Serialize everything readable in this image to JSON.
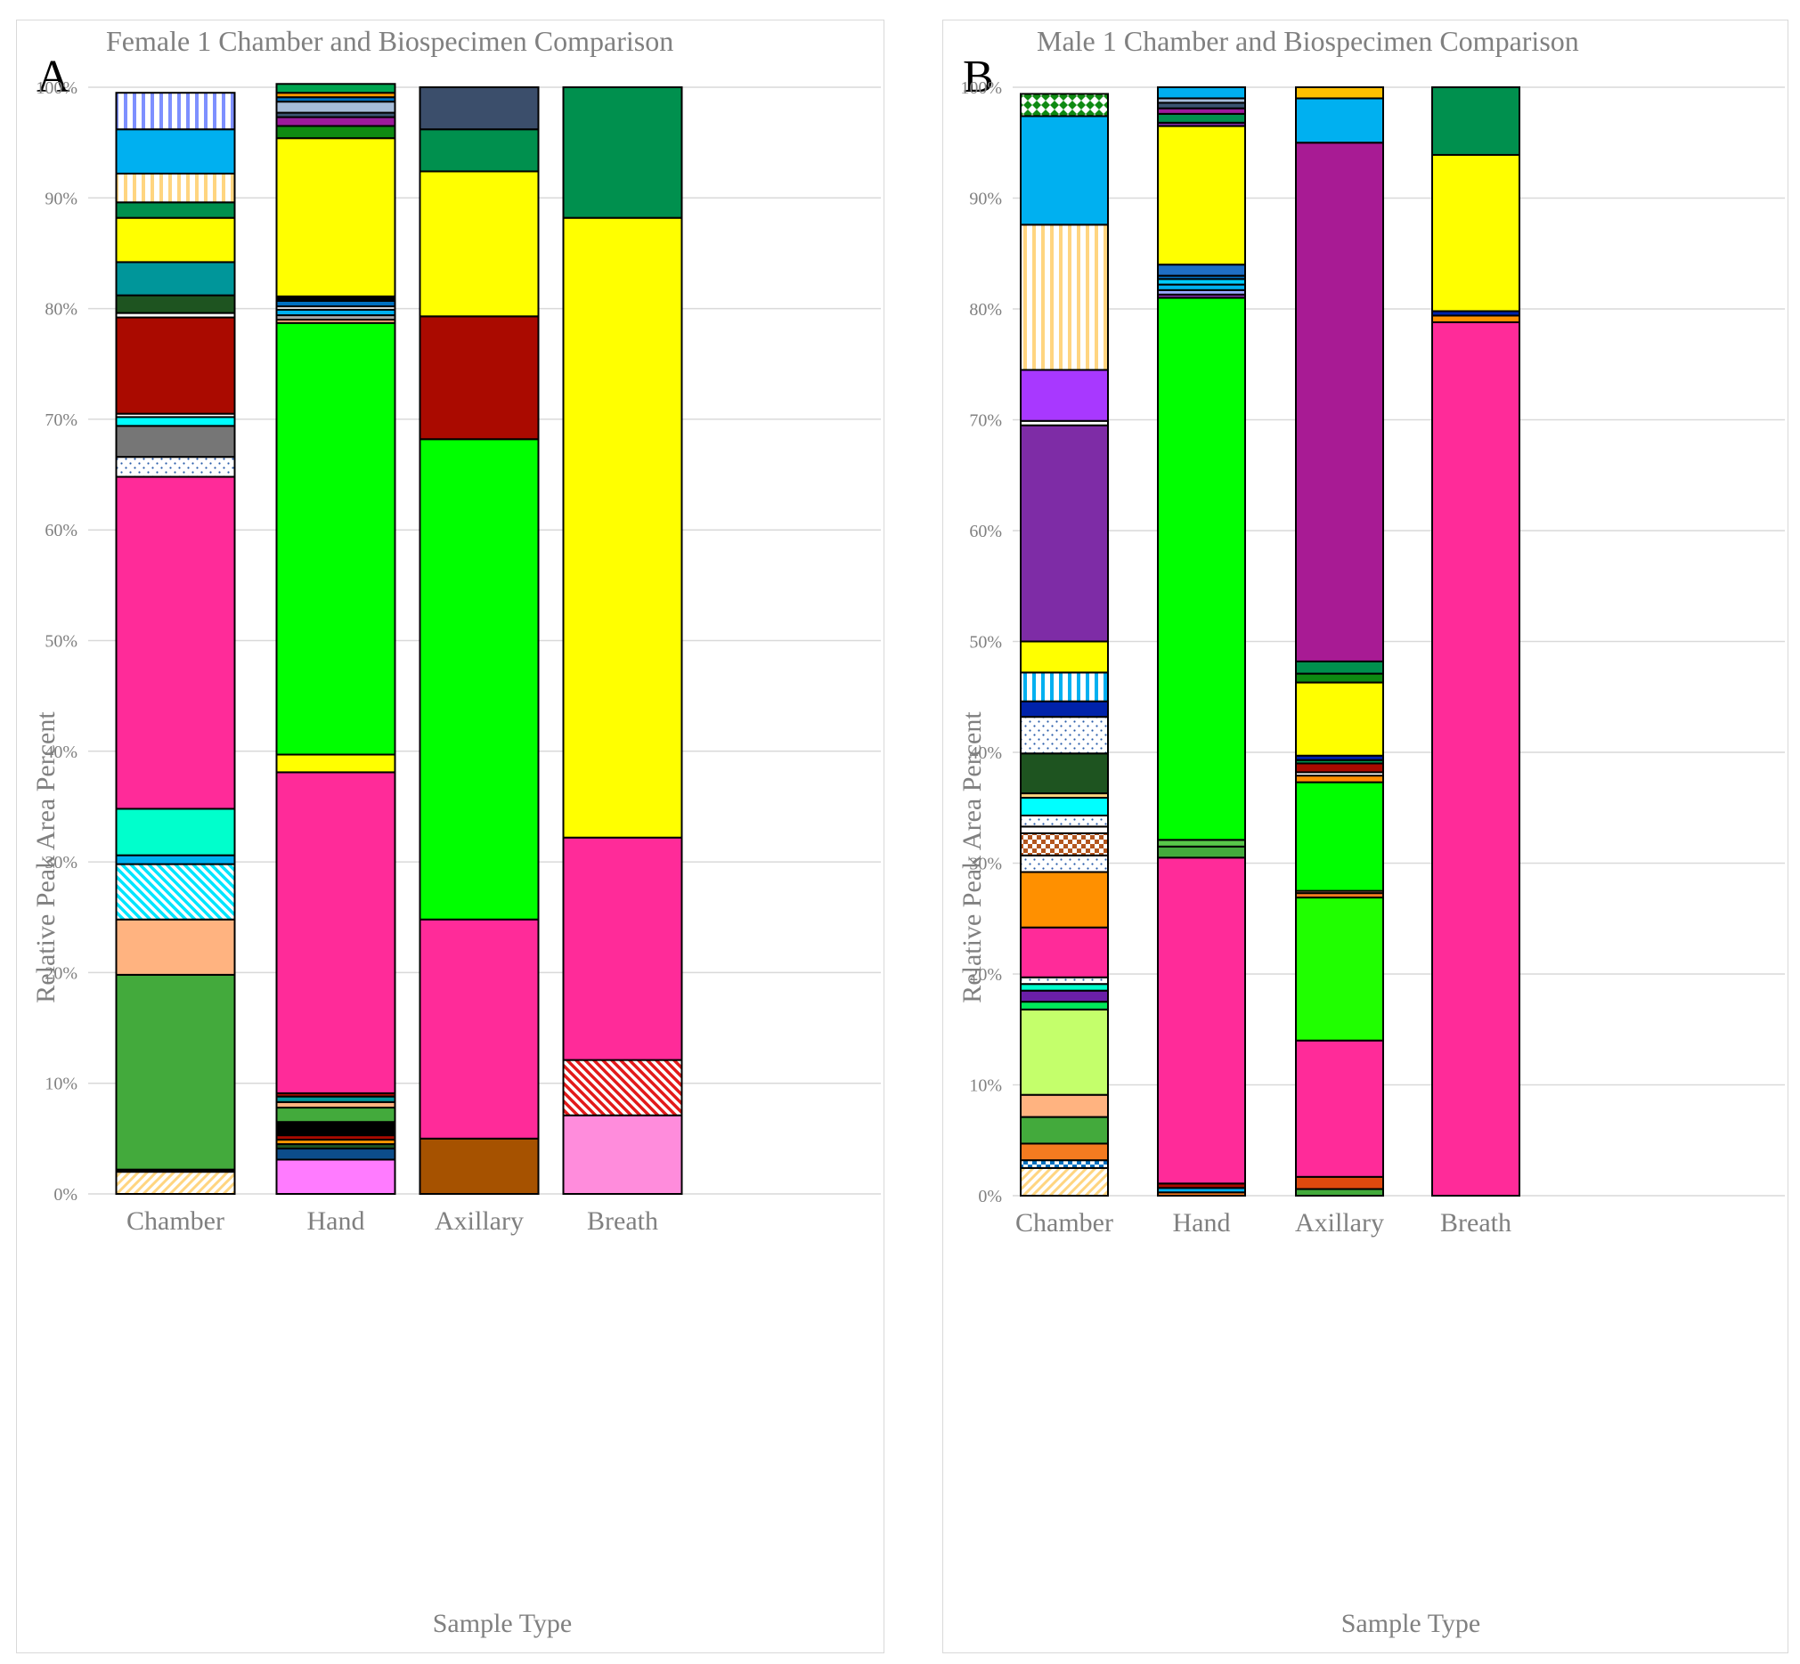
{
  "chart_data": [
    {
      "type": "bar",
      "stacked": true,
      "panel_letter": "A",
      "title": "Female 1 Chamber and Biospecimen Comparison",
      "xlabel": "Sample Type",
      "ylabel": "Relative Peak Area Percent",
      "ylim": [
        0,
        100
      ],
      "yticks": [
        "0%",
        "10%",
        "20%",
        "30%",
        "40%",
        "50%",
        "60%",
        "70%",
        "80%",
        "90%",
        "100%"
      ],
      "grid": true,
      "legend": "none",
      "categories": [
        "Chamber",
        "Hand",
        "Axillary",
        "Breath"
      ],
      "stacks": [
        [
          {
            "v": 2.0,
            "c": "#FFD580",
            "p": "diag-up"
          },
          {
            "v": 0.2,
            "c": "#000000"
          },
          {
            "v": 17.6,
            "c": "#43AA3C"
          },
          {
            "v": 5.0,
            "c": "#FFB380"
          },
          {
            "v": 5.0,
            "c": "#00E5FF",
            "p": "diag-down"
          },
          {
            "v": 0.8,
            "c": "#00B0F0"
          },
          {
            "v": 4.2,
            "c": "#00FFCC"
          },
          {
            "v": 30.0,
            "c": "#FF2B99"
          },
          {
            "v": 1.8,
            "c": "#FFFFFF",
            "p": "dots"
          },
          {
            "v": 2.8,
            "c": "#767676"
          },
          {
            "v": 0.8,
            "c": "#00FFFF"
          },
          {
            "v": 0.3,
            "c": "#FFFFFF"
          },
          {
            "v": 8.7,
            "c": "#AA0A00"
          },
          {
            "v": 0.4,
            "c": "#FFFFFF"
          },
          {
            "v": 1.6,
            "c": "#1E5420"
          },
          {
            "v": 3.0,
            "c": "#00969A"
          },
          {
            "v": 4.0,
            "c": "#FFFF00"
          },
          {
            "v": 1.4,
            "c": "#00904E"
          },
          {
            "v": 2.6,
            "c": "#FFD580",
            "p": "vert"
          },
          {
            "v": 4.0,
            "c": "#00B0F0"
          },
          {
            "v": 3.3,
            "c": "#7E90FF",
            "p": "vert"
          }
        ],
        [
          {
            "v": 3.1,
            "c": "#FF7BFF"
          },
          {
            "v": 1.0,
            "c": "#0C4D8A"
          },
          {
            "v": 0.4,
            "c": "#1E5420"
          },
          {
            "v": 0.4,
            "c": "#FF9900"
          },
          {
            "v": 0.4,
            "c": "#AA0A00"
          },
          {
            "v": 1.2,
            "c": "#000000"
          },
          {
            "v": 1.3,
            "c": "#43AA3C"
          },
          {
            "v": 0.5,
            "c": "#FFB380"
          },
          {
            "v": 0.5,
            "c": "#00969A"
          },
          {
            "v": 0.3,
            "c": "#AA0A00"
          },
          {
            "v": 29.0,
            "c": "#FF2B99"
          },
          {
            "v": 1.6,
            "c": "#FFFF00"
          },
          {
            "v": 39.0,
            "c": "#00FF00"
          },
          {
            "v": 0.3,
            "c": "#FFB380"
          },
          {
            "v": 0.4,
            "c": "#A6A6A6"
          },
          {
            "v": 0.5,
            "c": "#00B0F0"
          },
          {
            "v": 0.3,
            "c": "#FFFFFF"
          },
          {
            "v": 0.5,
            "c": "#0070C0"
          },
          {
            "v": 0.4,
            "c": "#000000"
          },
          {
            "v": 14.3,
            "c": "#FFFF00"
          },
          {
            "v": 1.1,
            "c": "#0E8A12"
          },
          {
            "v": 0.8,
            "c": "#9C1A9C"
          },
          {
            "v": 0.4,
            "c": "#3B5470"
          },
          {
            "v": 1.0,
            "c": "#A6BCD8"
          },
          {
            "v": 0.4,
            "c": "#0070C0"
          },
          {
            "v": 0.4,
            "c": "#FF9900"
          },
          {
            "v": 0.8,
            "c": "#00A550"
          }
        ],
        [
          {
            "v": 5.0,
            "c": "#A65200"
          },
          {
            "v": 19.8,
            "c": "#FF2B99"
          },
          {
            "v": 43.4,
            "c": "#00FF00"
          },
          {
            "v": 11.1,
            "c": "#AA0A00"
          },
          {
            "v": 13.1,
            "c": "#FFFF00"
          },
          {
            "v": 3.8,
            "c": "#00904E"
          },
          {
            "v": 3.8,
            "c": "#3B4E6B"
          }
        ],
        [
          {
            "v": 7.1,
            "c": "#FF8CDC"
          },
          {
            "v": 5.0,
            "c": "#E21A1A",
            "p": "diag-down"
          },
          {
            "v": 20.1,
            "c": "#FF2B99"
          },
          {
            "v": 56.0,
            "c": "#FFFF00"
          },
          {
            "v": 11.8,
            "c": "#00904E"
          }
        ]
      ]
    },
    {
      "type": "bar",
      "stacked": true,
      "panel_letter": "B",
      "title": "Male 1 Chamber and Biospecimen Comparison",
      "xlabel": "Sample Type",
      "ylabel": "Relative Peak Area Percent",
      "ylim": [
        0,
        100
      ],
      "yticks": [
        "0%",
        "10%",
        "20%",
        "30%",
        "40%",
        "50%",
        "60%",
        "70%",
        "80%",
        "90%",
        "100%"
      ],
      "grid": true,
      "legend": "none",
      "categories": [
        "Chamber",
        "Hand",
        "Axillary",
        "Breath"
      ],
      "stacks": [
        [
          {
            "v": 2.5,
            "c": "#FFD580",
            "p": "diag-up"
          },
          {
            "v": 0.7,
            "c": "#0070C0",
            "p": "checker"
          },
          {
            "v": 1.5,
            "c": "#F47B20"
          },
          {
            "v": 2.4,
            "c": "#43AA3C"
          },
          {
            "v": 2.0,
            "c": "#FFB380"
          },
          {
            "v": 7.7,
            "c": "#C4FF6B"
          },
          {
            "v": 0.7,
            "c": "#00E85A"
          },
          {
            "v": 1.0,
            "c": "#6A1FA8"
          },
          {
            "v": 0.6,
            "c": "#00FFCC"
          },
          {
            "v": 0.6,
            "c": "#FFFFFF",
            "p": "dots"
          },
          {
            "v": 4.5,
            "c": "#FF2B99"
          },
          {
            "v": 5.0,
            "c": "#FF9000"
          },
          {
            "v": 1.5,
            "c": "#FFFFFF",
            "p": "dots"
          },
          {
            "v": 2.0,
            "c": "#B4561E",
            "p": "checker"
          },
          {
            "v": 0.6,
            "c": "#FFFFFF"
          },
          {
            "v": 1.0,
            "c": "#FFFFFF",
            "p": "dots"
          },
          {
            "v": 1.6,
            "c": "#00FFFF"
          },
          {
            "v": 0.4,
            "c": "#FFD580"
          },
          {
            "v": 3.6,
            "c": "#1E5420"
          },
          {
            "v": 3.3,
            "c": "#FFFFFF",
            "p": "dots"
          },
          {
            "v": 1.4,
            "c": "#0022AA"
          },
          {
            "v": 2.6,
            "c": "#00B0F0",
            "p": "vert"
          },
          {
            "v": 2.8,
            "c": "#FFFF00"
          },
          {
            "v": 19.5,
            "c": "#7E2CA6"
          },
          {
            "v": 0.4,
            "c": "#FFFFFF"
          },
          {
            "v": 4.6,
            "c": "#A838FF"
          },
          {
            "v": 13.1,
            "c": "#FFD580",
            "p": "vert"
          },
          {
            "v": 9.8,
            "c": "#00B0F0"
          },
          {
            "v": 2.0,
            "c": "#0E8A12",
            "p": "diamond"
          }
        ],
        [
          {
            "v": 0.3,
            "c": "#F47B20"
          },
          {
            "v": 0.4,
            "c": "#00B0F0"
          },
          {
            "v": 0.4,
            "c": "#AA0A00"
          },
          {
            "v": 29.4,
            "c": "#FF2B99"
          },
          {
            "v": 1.0,
            "c": "#43AA3C"
          },
          {
            "v": 0.6,
            "c": "#58C84A"
          },
          {
            "v": 48.9,
            "c": "#00FF00"
          },
          {
            "v": 0.3,
            "c": "#7E2CA6"
          },
          {
            "v": 0.4,
            "c": "#9AA7FF"
          },
          {
            "v": 0.5,
            "c": "#00B0F0"
          },
          {
            "v": 0.5,
            "c": "#00CCFF"
          },
          {
            "v": 0.3,
            "c": "#0070C0"
          },
          {
            "v": 1.0,
            "c": "#1F6FC4"
          },
          {
            "v": 12.5,
            "c": "#FFFF00"
          },
          {
            "v": 0.3,
            "c": "#7E2CA6"
          },
          {
            "v": 0.8,
            "c": "#00904E"
          },
          {
            "v": 0.5,
            "c": "#9C1A9C"
          },
          {
            "v": 0.5,
            "c": "#3B5470"
          },
          {
            "v": 0.4,
            "c": "#A6BCD8"
          },
          {
            "v": 1.0,
            "c": "#00B0F0"
          }
        ],
        [
          {
            "v": 0.6,
            "c": "#43AA3C"
          },
          {
            "v": 1.1,
            "c": "#E0490E"
          },
          {
            "v": 12.3,
            "c": "#FF2B99"
          },
          {
            "v": 12.9,
            "c": "#20FF00"
          },
          {
            "v": 0.4,
            "c": "#F47B20"
          },
          {
            "v": 0.2,
            "c": "#FFB380"
          },
          {
            "v": 9.8,
            "c": "#00FF00"
          },
          {
            "v": 0.6,
            "c": "#FF9000"
          },
          {
            "v": 0.3,
            "c": "#FFFFFF"
          },
          {
            "v": 0.8,
            "c": "#AA0A00"
          },
          {
            "v": 0.3,
            "c": "#00904E"
          },
          {
            "v": 0.4,
            "c": "#0022AA"
          },
          {
            "v": 6.6,
            "c": "#FFFF00"
          },
          {
            "v": 0.8,
            "c": "#0E8A12"
          },
          {
            "v": 1.1,
            "c": "#00904E"
          },
          {
            "v": 46.8,
            "c": "#A81B94"
          },
          {
            "v": 4.0,
            "c": "#00B0F0"
          },
          {
            "v": 1.0,
            "c": "#FFC000"
          }
        ],
        [
          {
            "v": 78.8,
            "c": "#FF2B99"
          },
          {
            "v": 0.6,
            "c": "#FF9000"
          },
          {
            "v": 0.4,
            "c": "#0022AA"
          },
          {
            "v": 14.1,
            "c": "#FFFF00"
          },
          {
            "v": 6.1,
            "c": "#00904E"
          }
        ]
      ]
    }
  ]
}
